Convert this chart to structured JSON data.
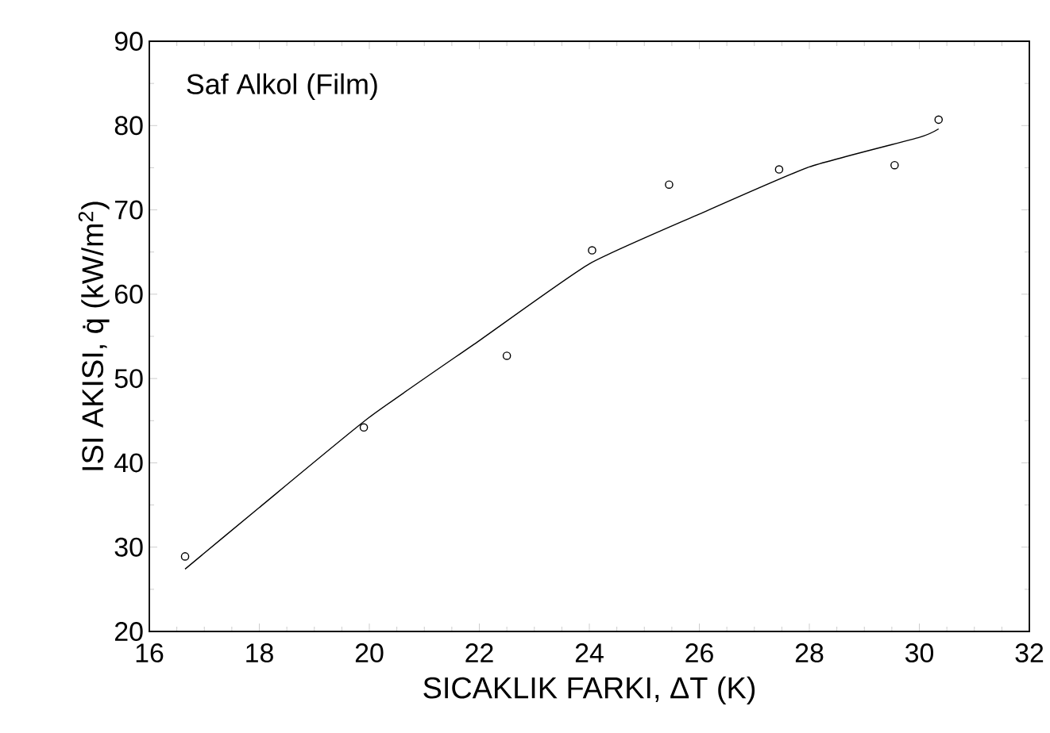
{
  "chart_data": {
    "type": "scatter",
    "xlabel": "SICAKLIK FARKI, ΔT (K)",
    "ylabel": "ISI AKISI, q̇ (kW/m$^{2}$)",
    "annotations": [
      "Saf Alkol (Film)"
    ],
    "xlim": [
      16,
      32
    ],
    "xticks": [
      16,
      18,
      20,
      22,
      24,
      26,
      28,
      30,
      32
    ],
    "ylim": [
      20,
      90
    ],
    "yticks": [
      20,
      30,
      40,
      50,
      60,
      70,
      80,
      90
    ],
    "grid": false,
    "series": [
      {
        "marker": "circle",
        "color": "#000000",
        "x": [
          16.65,
          19.9,
          22.5,
          24.05,
          25.45,
          27.45,
          29.55,
          30.35
        ],
        "values": [
          28.9,
          44.2,
          52.7,
          65.2,
          73.0,
          74.8,
          75.3,
          80.7
        ]
      },
      {
        "type": "line",
        "marker": "none",
        "line_style": "solid",
        "color": "#000000",
        "x": [
          16.65,
          18,
          20,
          22,
          24,
          26,
          28,
          30,
          30.35
        ],
        "values": [
          27.4,
          34.7,
          45.4,
          54.5,
          63.6,
          69.5,
          75.1,
          78.6,
          79.6
        ]
      }
    ]
  }
}
